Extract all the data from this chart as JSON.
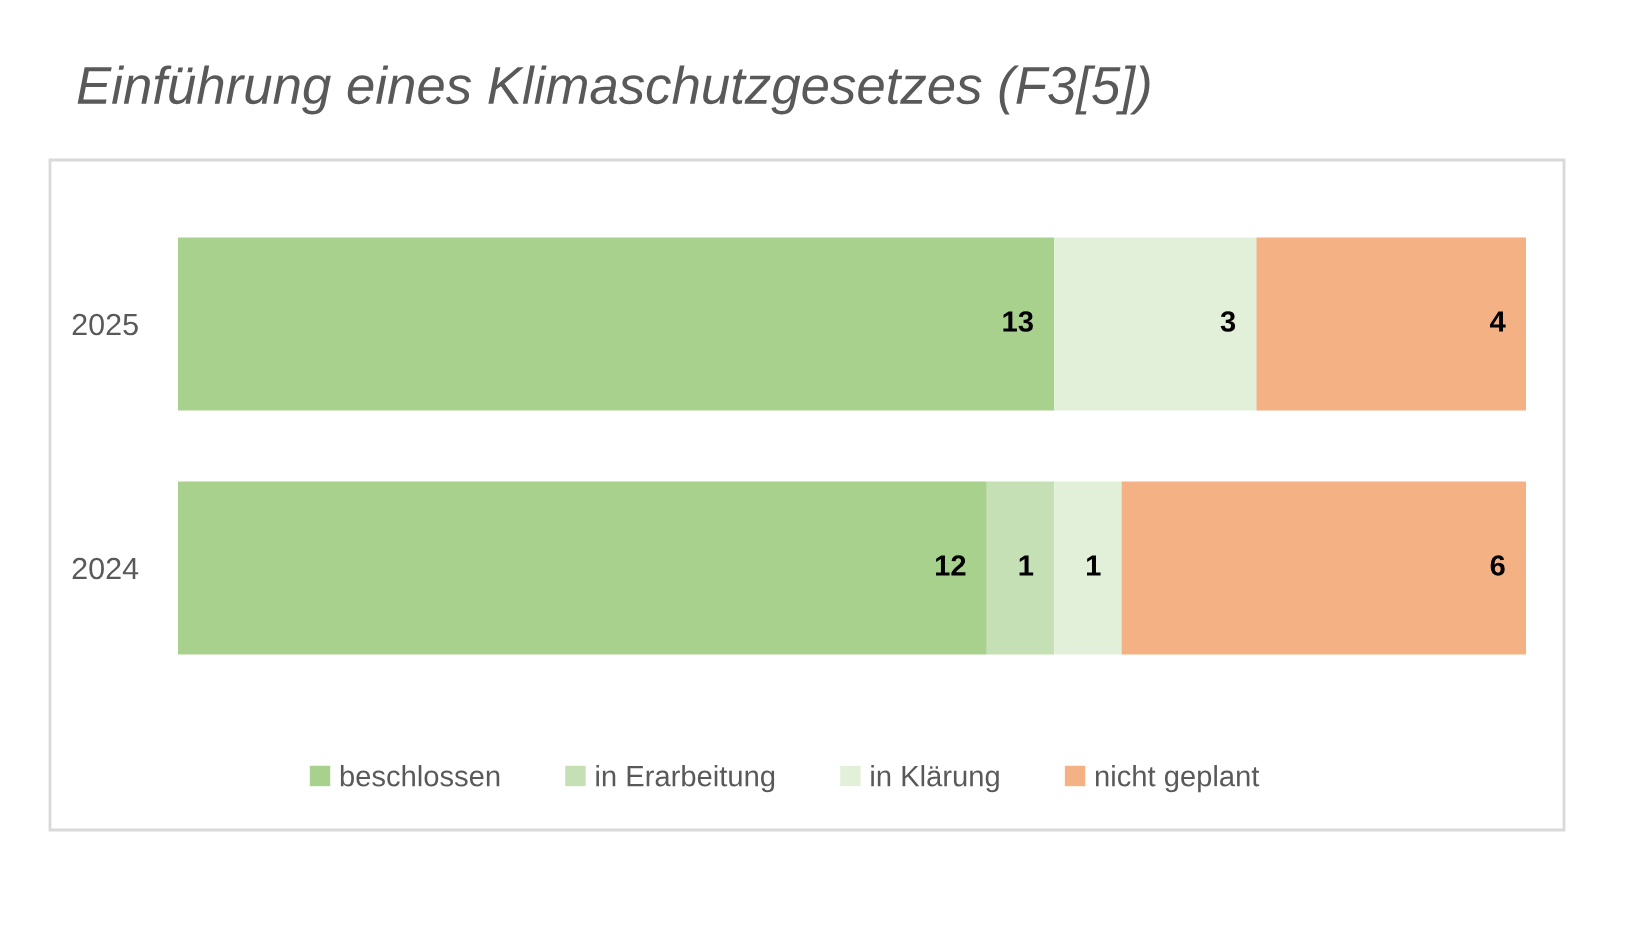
{
  "chart_data": {
    "type": "bar",
    "title": "Einführung eines Klimaschutzgesetzes (F3[5])",
    "orientation": "horizontal",
    "stacked": true,
    "categories": [
      "2025",
      "2024"
    ],
    "series": [
      {
        "name": "beschlossen",
        "color": "#a9d18e",
        "values": [
          13,
          12
        ]
      },
      {
        "name": "in Erarbeitung",
        "color": "#c5e0b4",
        "values": [
          null,
          1
        ]
      },
      {
        "name": "in Klärung",
        "color": "#e2f0d9",
        "values": [
          3,
          1
        ]
      },
      {
        "name": "nicht geplant",
        "color": "#f4b183",
        "values": [
          4,
          6
        ]
      }
    ],
    "xlim": [
      0,
      20
    ],
    "data_labels": true,
    "legend": "bottom",
    "tick_labels": "y"
  }
}
